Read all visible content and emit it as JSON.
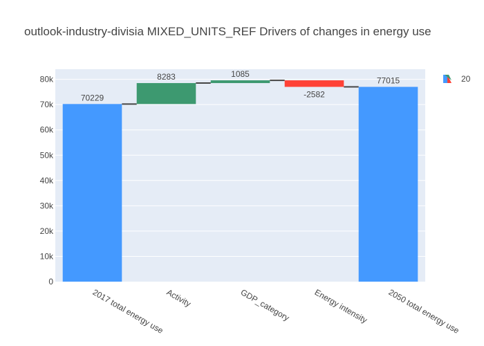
{
  "chart_data": {
    "type": "bar",
    "title": "outlook-industry-divisia MIXED_UNITS_REF Drivers of changes in energy use",
    "categories": [
      "2017 total energy use",
      "Activity",
      "GDP_category",
      "Energy intensity",
      "2050 total energy use"
    ],
    "measures": [
      "total",
      "relative",
      "relative",
      "relative",
      "total"
    ],
    "values": [
      70229,
      8283,
      1085,
      -2582,
      77015
    ],
    "labels": [
      "70229",
      "8283",
      "1085",
      "-2582",
      "77015"
    ],
    "ylim": [
      0,
      84000
    ],
    "yticks": [
      0,
      10000,
      20000,
      30000,
      40000,
      50000,
      60000,
      70000,
      80000
    ],
    "ytick_labels": [
      "0",
      "10k",
      "20k",
      "30k",
      "40k",
      "50k",
      "60k",
      "70k",
      "80k"
    ],
    "grid": true,
    "legend": {
      "placement": "top-right",
      "entries": [
        "20"
      ]
    },
    "colors": {
      "total": "#4499ff",
      "increasing": "#3d9970",
      "decreasing": "#ff4136",
      "connector": "#444444",
      "plot_bg": "#e5ecf6",
      "grid": "#ffffff"
    }
  }
}
